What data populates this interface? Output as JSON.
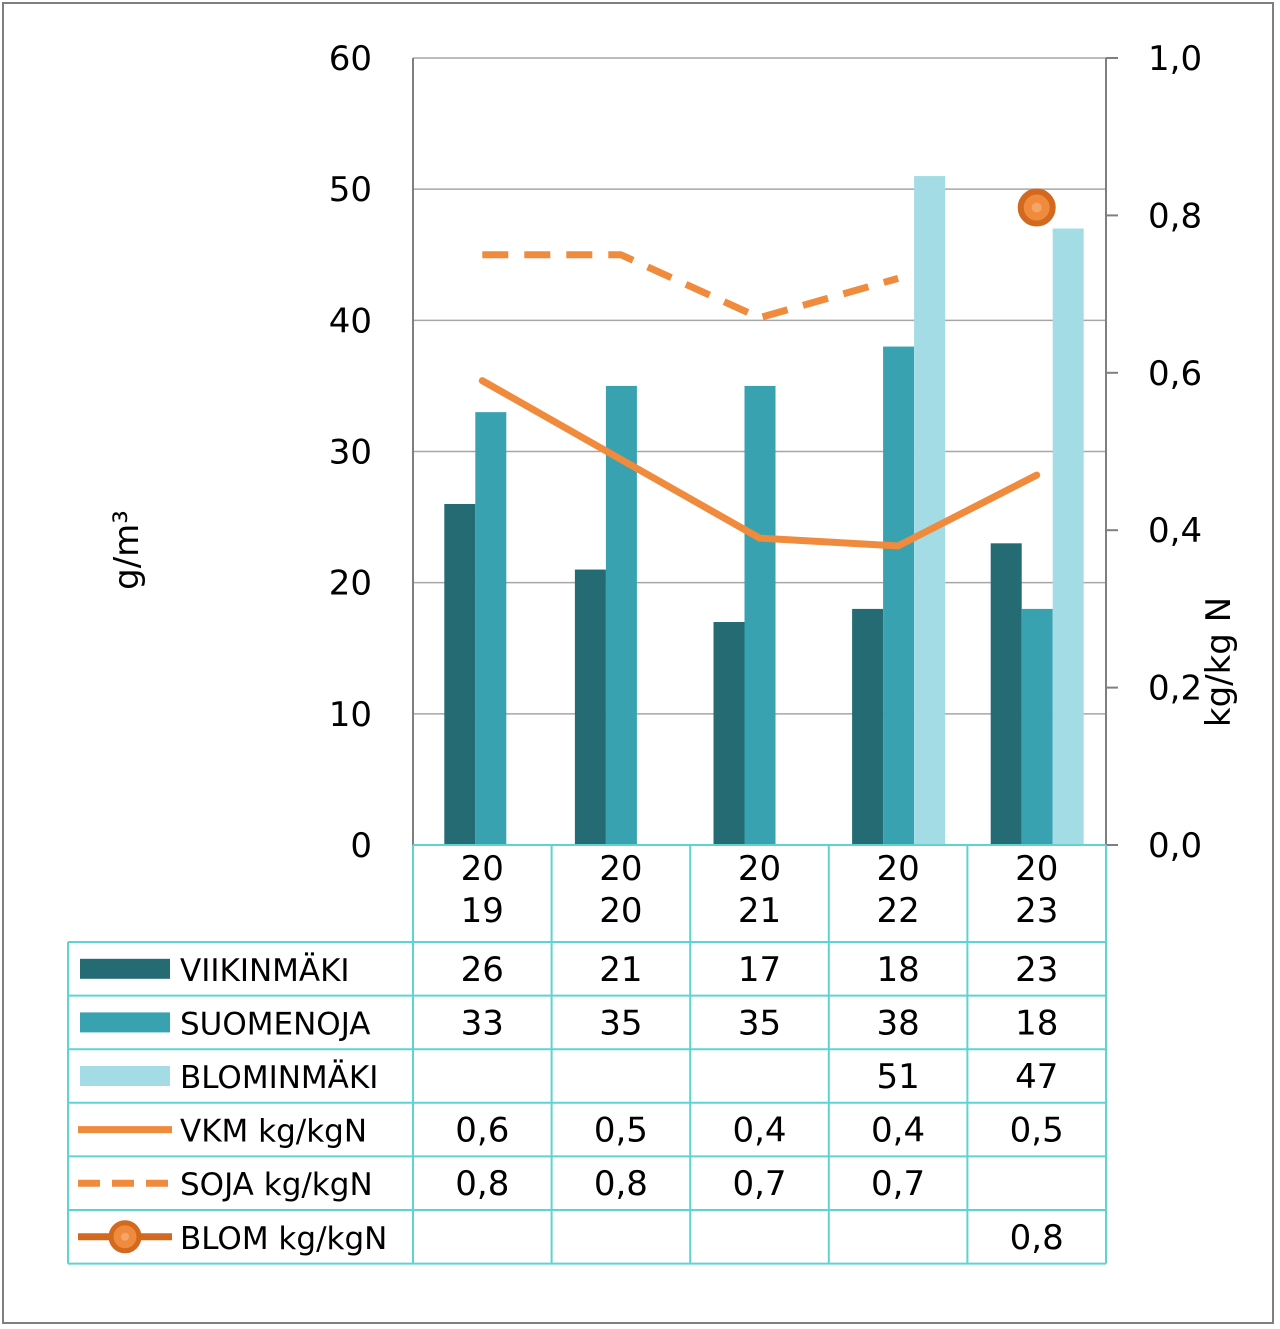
{
  "chart_data": {
    "type": "bar",
    "categories": [
      "20\n19",
      "20\n20",
      "20\n21",
      "20\n22",
      "20\n23"
    ],
    "ylabel_left": "g/m³",
    "ylabel_right": "kg/kg N",
    "ylim_left": [
      0,
      60
    ],
    "ylim_right": [
      0,
      1
    ],
    "left_ticks": [
      "0",
      "10",
      "20",
      "30",
      "40",
      "50",
      "60"
    ],
    "right_ticks": [
      "0,0",
      "0,2",
      "0,4",
      "0,6",
      "0,8",
      "1,0"
    ],
    "bar_series": [
      {
        "name": "VIIKINMÄKI",
        "color": "#246b73",
        "values": [
          26,
          21,
          17,
          18,
          23
        ],
        "labels": [
          "26",
          "21",
          "17",
          "18",
          "23"
        ]
      },
      {
        "name": "SUOMENOJA",
        "color": "#38a2b0",
        "values": [
          33,
          35,
          35,
          38,
          18
        ],
        "labels": [
          "33",
          "35",
          "35",
          "38",
          "18"
        ]
      },
      {
        "name": "BLOMINMÄKI",
        "color": "#a3dce4",
        "values": [
          null,
          null,
          null,
          51,
          47
        ],
        "labels": [
          "",
          "",
          "",
          "51",
          "47"
        ]
      }
    ],
    "line_series": [
      {
        "name": "VKM kg/kgN",
        "color": "#f08a3c",
        "style": "solid",
        "values": [
          0.59,
          0.49,
          0.39,
          0.38,
          0.47
        ],
        "labels": [
          "0,6",
          "0,5",
          "0,4",
          "0,4",
          "0,5"
        ]
      },
      {
        "name": "SOJA kg/kgN",
        "color": "#f08a3c",
        "style": "dashed",
        "values": [
          0.75,
          0.75,
          0.67,
          0.72,
          null
        ],
        "labels": [
          "0,8",
          "0,8",
          "0,7",
          "0,7",
          ""
        ]
      },
      {
        "name": "BLOM kg/kgN",
        "color": "#d2691e",
        "style": "marker",
        "values": [
          null,
          null,
          null,
          null,
          0.81
        ],
        "labels": [
          "",
          "",
          "",
          "",
          "0,8"
        ]
      }
    ],
    "grid": true,
    "legend_placement": "data-table-bottom"
  }
}
